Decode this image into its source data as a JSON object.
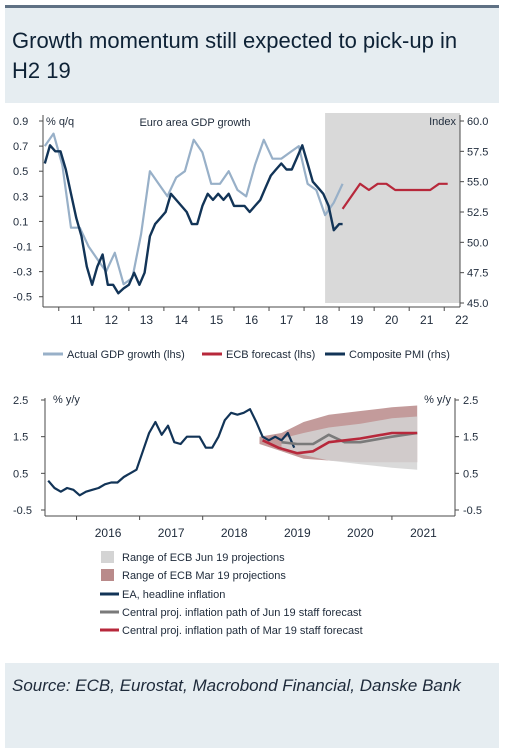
{
  "title": "Growth momentum still expected to pick-up in H2 19",
  "source": "Source: ECB, Eurostat, Macrobond Financial, Danske Bank",
  "colors": {
    "navy": "#123457",
    "lightblue": "#98b0c8",
    "red": "#b7283b",
    "grey": "#7a7a7a",
    "shade": "#d9d9d9",
    "pink_band": "#b98a8a",
    "grey_band": "#d4d4d4"
  },
  "chart_data": [
    {
      "type": "line",
      "title": "Euro area GDP growth",
      "left_unit": "% q/q",
      "right_unit": "Index",
      "left_ticks": [
        "0.9",
        "0.7",
        "0.5",
        "0.3",
        "0.1",
        "-0.1",
        "-0.3",
        "-0.5"
      ],
      "right_ticks": [
        "60.0",
        "57.5",
        "55.0",
        "52.5",
        "50.0",
        "47.5",
        "45.0"
      ],
      "x_ticks": [
        "11",
        "12",
        "13",
        "14",
        "15",
        "16",
        "17",
        "18",
        "19",
        "20",
        "21",
        "22"
      ],
      "ylim_left": [
        -0.55,
        0.9
      ],
      "ylim_right": [
        45,
        60
      ],
      "xlim": [
        2010.55,
        2022.45
      ],
      "forecast_shade_from": 2018.6,
      "legend": [
        "Actual GDP growth (lhs)",
        "ECB forecast (lhs)",
        "Composite PMI (rhs)"
      ],
      "series": [
        {
          "name": "Actual GDP growth (lhs)",
          "axis": "left",
          "color": "#98b0c8",
          "points": [
            [
              2010.6,
              0.7
            ],
            [
              2010.85,
              0.8
            ],
            [
              2011.1,
              0.55
            ],
            [
              2011.35,
              0.05
            ],
            [
              2011.6,
              0.05
            ],
            [
              2011.85,
              -0.1
            ],
            [
              2012.1,
              -0.2
            ],
            [
              2012.35,
              -0.3
            ],
            [
              2012.6,
              -0.15
            ],
            [
              2012.85,
              -0.4
            ],
            [
              2013.1,
              -0.35
            ],
            [
              2013.35,
              0.0
            ],
            [
              2013.6,
              0.5
            ],
            [
              2013.85,
              0.4
            ],
            [
              2014.1,
              0.3
            ],
            [
              2014.35,
              0.45
            ],
            [
              2014.6,
              0.5
            ],
            [
              2014.85,
              0.75
            ],
            [
              2015.1,
              0.65
            ],
            [
              2015.35,
              0.4
            ],
            [
              2015.6,
              0.4
            ],
            [
              2015.85,
              0.5
            ],
            [
              2016.1,
              0.35
            ],
            [
              2016.35,
              0.3
            ],
            [
              2016.6,
              0.55
            ],
            [
              2016.85,
              0.75
            ],
            [
              2017.1,
              0.6
            ],
            [
              2017.35,
              0.6
            ],
            [
              2017.6,
              0.65
            ],
            [
              2017.85,
              0.7
            ],
            [
              2018.1,
              0.4
            ],
            [
              2018.35,
              0.35
            ],
            [
              2018.6,
              0.15
            ],
            [
              2018.85,
              0.25
            ],
            [
              2019.1,
              0.4
            ]
          ]
        },
        {
          "name": "ECB forecast (lhs)",
          "axis": "left",
          "color": "#b7283b",
          "points": [
            [
              2019.1,
              0.2
            ],
            [
              2019.35,
              0.3
            ],
            [
              2019.6,
              0.4
            ],
            [
              2019.85,
              0.35
            ],
            [
              2020.1,
              0.4
            ],
            [
              2020.35,
              0.4
            ],
            [
              2020.6,
              0.35
            ],
            [
              2020.85,
              0.35
            ],
            [
              2021.1,
              0.35
            ],
            [
              2021.35,
              0.35
            ],
            [
              2021.6,
              0.35
            ],
            [
              2021.85,
              0.4
            ],
            [
              2022.1,
              0.4
            ]
          ]
        },
        {
          "name": "Composite PMI (rhs)",
          "axis": "right",
          "color": "#123457",
          "points": [
            [
              2010.6,
              56.5
            ],
            [
              2010.75,
              58
            ],
            [
              2010.9,
              57.5
            ],
            [
              2011.05,
              57.5
            ],
            [
              2011.2,
              56
            ],
            [
              2011.35,
              54
            ],
            [
              2011.5,
              52
            ],
            [
              2011.65,
              50.5
            ],
            [
              2011.8,
              48
            ],
            [
              2011.95,
              46.5
            ],
            [
              2012.1,
              48
            ],
            [
              2012.25,
              49
            ],
            [
              2012.4,
              46.5
            ],
            [
              2012.55,
              46.5
            ],
            [
              2012.7,
              45.8
            ],
            [
              2012.85,
              46.2
            ],
            [
              2013.0,
              46.5
            ],
            [
              2013.15,
              47.5
            ],
            [
              2013.3,
              46.5
            ],
            [
              2013.45,
              47.5
            ],
            [
              2013.6,
              50.5
            ],
            [
              2013.75,
              51.5
            ],
            [
              2013.9,
              52
            ],
            [
              2014.05,
              52.5
            ],
            [
              2014.2,
              54
            ],
            [
              2014.35,
              53.5
            ],
            [
              2014.5,
              53
            ],
            [
              2014.65,
              52.5
            ],
            [
              2014.8,
              51.5
            ],
            [
              2014.95,
              51.5
            ],
            [
              2015.1,
              53
            ],
            [
              2015.25,
              54
            ],
            [
              2015.4,
              53.5
            ],
            [
              2015.55,
              54
            ],
            [
              2015.7,
              53.5
            ],
            [
              2015.85,
              54
            ],
            [
              2016.0,
              53
            ],
            [
              2016.15,
              53
            ],
            [
              2016.3,
              53
            ],
            [
              2016.45,
              52.5
            ],
            [
              2016.6,
              53
            ],
            [
              2016.75,
              53.5
            ],
            [
              2016.9,
              54.5
            ],
            [
              2017.05,
              55.5
            ],
            [
              2017.2,
              56
            ],
            [
              2017.35,
              56.5
            ],
            [
              2017.5,
              56
            ],
            [
              2017.65,
              56
            ],
            [
              2017.8,
              57
            ],
            [
              2017.95,
              58
            ],
            [
              2018.1,
              56.5
            ],
            [
              2018.25,
              55
            ],
            [
              2018.4,
              54.5
            ],
            [
              2018.55,
              54
            ],
            [
              2018.7,
              53
            ],
            [
              2018.85,
              51
            ],
            [
              2019.0,
              51.5
            ],
            [
              2019.1,
              51.5
            ]
          ]
        }
      ]
    },
    {
      "type": "line",
      "left_unit": "% y/y",
      "right_unit": "% y/y",
      "left_ticks": [
        "2.5",
        "1.5",
        "0.5",
        "-0.5"
      ],
      "right_ticks": [
        "2.5",
        "1.5",
        "0.5",
        "-0.5"
      ],
      "x_ticks": [
        "2016",
        "2017",
        "2018",
        "2019",
        "2020",
        "2021"
      ],
      "ylim": [
        -0.5,
        2.5
      ],
      "xlim": [
        2015.5,
        2022.0
      ],
      "legend": [
        "Range of ECB Jun 19 projections",
        "Range of ECB Mar 19 projections",
        "EA, headline inflation",
        "Central proj. inflation path of Jun 19 staff forecast",
        "Central proj. inflation path of Mar 19 staff forecast"
      ],
      "bands": [
        {
          "name": "Range of ECB Mar 19 projections",
          "color": "#b98a8a",
          "upper": [
            [
              2018.9,
              1.5
            ],
            [
              2019.25,
              1.6
            ],
            [
              2019.6,
              1.9
            ],
            [
              2020.0,
              2.1
            ],
            [
              2020.5,
              2.2
            ],
            [
              2021.0,
              2.3
            ],
            [
              2021.4,
              2.35
            ]
          ],
          "lower": [
            [
              2018.9,
              1.3
            ],
            [
              2019.25,
              1.1
            ],
            [
              2019.6,
              0.9
            ],
            [
              2020.0,
              0.85
            ],
            [
              2020.5,
              0.8
            ],
            [
              2021.0,
              0.8
            ],
            [
              2021.4,
              0.8
            ]
          ]
        },
        {
          "name": "Range of ECB Jun 19 projections",
          "color": "#d4d4d4",
          "upper": [
            [
              2019.25,
              1.45
            ],
            [
              2019.6,
              1.6
            ],
            [
              2020.0,
              1.75
            ],
            [
              2020.5,
              1.85
            ],
            [
              2021.0,
              2.0
            ],
            [
              2021.4,
              2.05
            ]
          ],
          "lower": [
            [
              2019.25,
              1.15
            ],
            [
              2019.6,
              1.0
            ],
            [
              2020.0,
              0.85
            ],
            [
              2020.5,
              0.75
            ],
            [
              2021.0,
              0.65
            ],
            [
              2021.4,
              0.6
            ]
          ]
        }
      ],
      "series": [
        {
          "name": "EA, headline inflation",
          "color": "#123457",
          "points": [
            [
              2015.55,
              0.3
            ],
            [
              2015.65,
              0.1
            ],
            [
              2015.75,
              0.0
            ],
            [
              2015.85,
              0.1
            ],
            [
              2015.95,
              0.05
            ],
            [
              2016.05,
              -0.1
            ],
            [
              2016.15,
              0.0
            ],
            [
              2016.25,
              0.05
            ],
            [
              2016.35,
              0.1
            ],
            [
              2016.45,
              0.2
            ],
            [
              2016.55,
              0.25
            ],
            [
              2016.65,
              0.25
            ],
            [
              2016.75,
              0.4
            ],
            [
              2016.85,
              0.5
            ],
            [
              2016.95,
              0.6
            ],
            [
              2017.05,
              1.1
            ],
            [
              2017.15,
              1.6
            ],
            [
              2017.25,
              1.9
            ],
            [
              2017.35,
              1.55
            ],
            [
              2017.45,
              1.8
            ],
            [
              2017.55,
              1.35
            ],
            [
              2017.65,
              1.3
            ],
            [
              2017.75,
              1.5
            ],
            [
              2017.85,
              1.5
            ],
            [
              2017.95,
              1.5
            ],
            [
              2018.05,
              1.2
            ],
            [
              2018.15,
              1.2
            ],
            [
              2018.25,
              1.5
            ],
            [
              2018.35,
              1.95
            ],
            [
              2018.45,
              2.15
            ],
            [
              2018.55,
              2.1
            ],
            [
              2018.65,
              2.15
            ],
            [
              2018.75,
              2.25
            ],
            [
              2018.85,
              1.9
            ],
            [
              2018.95,
              1.5
            ],
            [
              2019.05,
              1.4
            ],
            [
              2019.15,
              1.5
            ],
            [
              2019.25,
              1.4
            ],
            [
              2019.35,
              1.6
            ],
            [
              2019.45,
              1.2
            ]
          ]
        },
        {
          "name": "Central proj. inflation path of Jun 19 staff forecast",
          "color": "#7a7a7a",
          "points": [
            [
              2019.25,
              1.35
            ],
            [
              2019.5,
              1.3
            ],
            [
              2019.75,
              1.3
            ],
            [
              2020.0,
              1.55
            ],
            [
              2020.25,
              1.35
            ],
            [
              2020.5,
              1.35
            ],
            [
              2021.0,
              1.5
            ],
            [
              2021.4,
              1.6
            ]
          ]
        },
        {
          "name": "Central proj. inflation path of Mar 19 staff forecast",
          "color": "#b7283b",
          "points": [
            [
              2018.95,
              1.4
            ],
            [
              2019.2,
              1.2
            ],
            [
              2019.5,
              1.05
            ],
            [
              2019.75,
              1.1
            ],
            [
              2020.0,
              1.35
            ],
            [
              2020.5,
              1.45
            ],
            [
              2021.0,
              1.6
            ],
            [
              2021.4,
              1.6
            ]
          ]
        }
      ]
    }
  ]
}
